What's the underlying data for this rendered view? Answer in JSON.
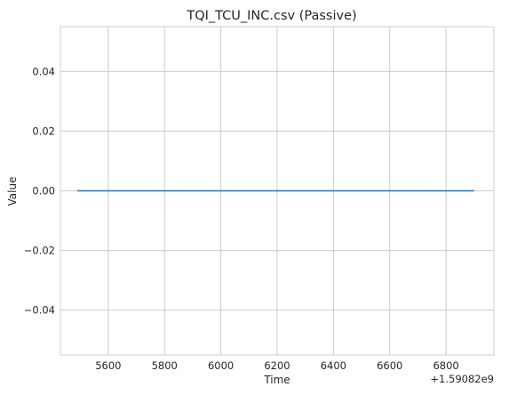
{
  "chart_data": {
    "type": "line",
    "title": "TQI_TCU_INC.csv (Passive)",
    "xlabel": "Time",
    "ylabel": "Value",
    "x_offset_label": "+1.59082e9",
    "xlim": [
      5430,
      6970
    ],
    "ylim": [
      -0.055,
      0.055
    ],
    "x_ticks": [
      5600,
      5800,
      6000,
      6200,
      6400,
      6600,
      6800
    ],
    "x_tick_labels": [
      "5600",
      "5800",
      "6000",
      "6200",
      "6400",
      "6600",
      "6800"
    ],
    "y_ticks": [
      -0.04,
      -0.02,
      0.0,
      0.02,
      0.04
    ],
    "y_tick_labels": [
      "−0.04",
      "−0.02",
      "0.00",
      "0.02",
      "0.04"
    ],
    "grid": true,
    "series": [
      {
        "color": "#1f77b4",
        "x": [
          5490,
          6900
        ],
        "y": [
          0.0,
          0.0
        ]
      }
    ]
  }
}
